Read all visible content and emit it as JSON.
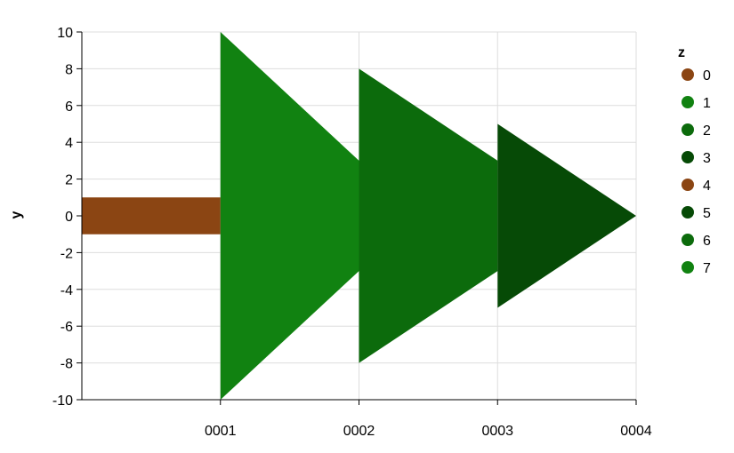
{
  "chart_data": {
    "type": "area",
    "ylabel": "y",
    "xlabel": "",
    "ylim": [
      -10,
      10
    ],
    "xlim": [
      0,
      4
    ],
    "y_ticks": [
      "10",
      "8",
      "6",
      "4",
      "2",
      "0",
      "-2",
      "-4",
      "-6",
      "-8",
      "-10"
    ],
    "x_ticks": [
      "0001",
      "0002",
      "0003",
      "0004"
    ],
    "grid": true,
    "legend_position": "right",
    "legend": {
      "title": "z",
      "entries": [
        {
          "label": "0",
          "color": "#8b4513"
        },
        {
          "label": "1",
          "color": "#118211"
        },
        {
          "label": "2",
          "color": "#0c6b0c"
        },
        {
          "label": "3",
          "color": "#064a06"
        },
        {
          "label": "4",
          "color": "#8b4513"
        },
        {
          "label": "5",
          "color": "#064a06"
        },
        {
          "label": "6",
          "color": "#0c6b0c"
        },
        {
          "label": "7",
          "color": "#118211"
        }
      ]
    },
    "shapes": [
      {
        "z": "0",
        "color": "#8b4513",
        "points": [
          [
            0,
            -1
          ],
          [
            1,
            -1
          ],
          [
            1,
            1
          ],
          [
            0,
            1
          ]
        ]
      },
      {
        "z": "1",
        "color": "#118211",
        "points": [
          [
            1,
            -10
          ],
          [
            2,
            -3
          ],
          [
            2,
            3
          ],
          [
            1,
            10
          ]
        ]
      },
      {
        "z": "2",
        "color": "#0c6b0c",
        "points": [
          [
            2,
            -8
          ],
          [
            3,
            -3
          ],
          [
            3,
            3
          ],
          [
            2,
            8
          ]
        ]
      },
      {
        "z": "3",
        "color": "#064a06",
        "points": [
          [
            3,
            -5
          ],
          [
            4,
            0
          ],
          [
            3,
            5
          ]
        ]
      }
    ]
  }
}
